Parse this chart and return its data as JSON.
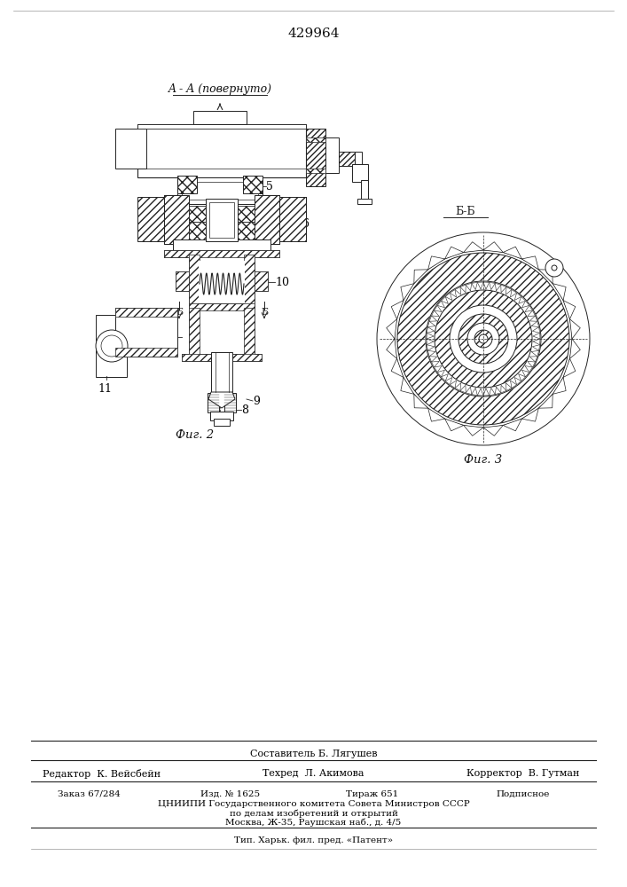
{
  "patent_number": "429964",
  "page_color": "#ffffff",
  "line_color": "#222222",
  "hatch_color": "#555555",
  "fig_label_1": "Фиг. 2",
  "fig_label_2": "Фиг. 3",
  "section_label_aa": "A - A (повернуто)",
  "section_label_bb": "Б-Б",
  "footer_line1": "Составитель Б. Лягушев",
  "footer_line2_left": "Редактор  К. Вейсбейн",
  "footer_line2_mid": "Техред  Л. Акимова",
  "footer_line2_right": "Корректор  В. Гутман",
  "footer_line3_1": "Заказ 67/284",
  "footer_line3_2": "Изд. № 1625",
  "footer_line3_3": "Тираж 651",
  "footer_line3_4": "Подписное",
  "footer_line4": "ЦНИИПИ Государственного комитета Совета Министров СССР",
  "footer_line5": "по делам изобретений и открытий",
  "footer_line6": "Москва, Ж-35, Раушская наб., д. 4/5",
  "footer_line7": "Тип. Харьк. фил. пред. «Патент»"
}
